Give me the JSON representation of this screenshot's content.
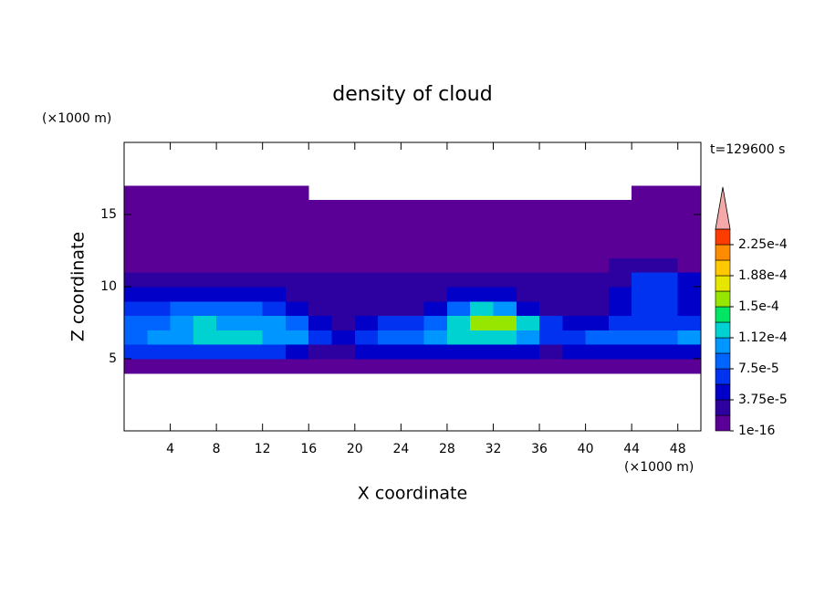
{
  "chart_data": {
    "type": "contour",
    "title": "density of cloud",
    "x_label": "X coordinate",
    "y_label": "Z coordinate",
    "x_unit": "(×1000 m)",
    "y_unit": "(×1000 m)",
    "annotation": "t=129600 s",
    "xlim": [
      0,
      50
    ],
    "ylim": [
      0,
      20
    ],
    "xticks": [
      4,
      8,
      12,
      16,
      20,
      24,
      28,
      32,
      36,
      40,
      44,
      48
    ],
    "yticks": [
      5,
      10,
      15
    ],
    "x": [
      1,
      3,
      5,
      7,
      9,
      11,
      13,
      15,
      17,
      19,
      21,
      23,
      25,
      27,
      29,
      31,
      33,
      35,
      37,
      39,
      41,
      43,
      45,
      47,
      49
    ],
    "y": [
      4.5,
      5.5,
      6.5,
      7.5,
      8.5,
      9.5,
      10.5,
      11.5,
      12.5,
      13.5,
      14.5,
      15.5,
      16.5
    ],
    "values": [
      [
        9e-06,
        9e-06,
        9e-06,
        9e-06,
        9e-06,
        9e-06,
        9e-06,
        9e-06,
        9e-06,
        9e-06,
        9e-06,
        9e-06,
        9e-06,
        9e-06,
        9e-06,
        9e-06,
        9e-06,
        9e-06,
        9e-06,
        9e-06,
        9e-06,
        9e-06,
        9e-06,
        9e-06,
        9e-06
      ],
      [
        6.5e-05,
        6.5e-05,
        6.5e-05,
        6.5e-05,
        6.5e-05,
        6.5e-05,
        6.5e-05,
        4.7e-05,
        2.8e-05,
        2.8e-05,
        4.7e-05,
        4.7e-05,
        4.7e-05,
        4.7e-05,
        4.7e-05,
        4.7e-05,
        4.7e-05,
        4.7e-05,
        2.8e-05,
        4.7e-05,
        4.7e-05,
        4.7e-05,
        4.7e-05,
        4.7e-05,
        4.7e-05
      ],
      [
        8.4e-05,
        0.000103,
        0.000103,
        0.000122,
        0.000122,
        0.000122,
        0.000103,
        0.000103,
        6.5e-05,
        4.7e-05,
        6.5e-05,
        8.4e-05,
        8.4e-05,
        0.000103,
        0.000122,
        0.000122,
        0.000122,
        0.000103,
        6.5e-05,
        6.5e-05,
        8.4e-05,
        8.4e-05,
        8.4e-05,
        8.4e-05,
        0.000103
      ],
      [
        8.4e-05,
        8.4e-05,
        0.000103,
        0.000122,
        0.000103,
        0.000103,
        0.000103,
        8.4e-05,
        4.7e-05,
        2.8e-05,
        4.7e-05,
        6.5e-05,
        6.5e-05,
        8.4e-05,
        0.000122,
        0.000159,
        0.000159,
        0.000122,
        6.5e-05,
        4.7e-05,
        4.7e-05,
        6.5e-05,
        6.5e-05,
        6.5e-05,
        6.5e-05
      ],
      [
        6.5e-05,
        6.5e-05,
        8.4e-05,
        8.4e-05,
        8.4e-05,
        8.4e-05,
        6.5e-05,
        4.7e-05,
        2.8e-05,
        2.8e-05,
        2.8e-05,
        2.8e-05,
        2.8e-05,
        4.7e-05,
        8.4e-05,
        0.000122,
        0.000103,
        4.7e-05,
        2.8e-05,
        2.8e-05,
        2.8e-05,
        4.7e-05,
        6.5e-05,
        6.5e-05,
        4.7e-05
      ],
      [
        4.7e-05,
        4.7e-05,
        4.7e-05,
        4.7e-05,
        4.7e-05,
        4.7e-05,
        4.7e-05,
        2.8e-05,
        2.8e-05,
        2.8e-05,
        2.8e-05,
        2.8e-05,
        2.8e-05,
        2.8e-05,
        4.7e-05,
        4.7e-05,
        4.7e-05,
        2.8e-05,
        2.8e-05,
        2.8e-05,
        2.8e-05,
        4.7e-05,
        6.5e-05,
        6.5e-05,
        4.7e-05
      ],
      [
        2.8e-05,
        2.8e-05,
        2.8e-05,
        2.8e-05,
        2.8e-05,
        2.8e-05,
        2.8e-05,
        2.8e-05,
        2.8e-05,
        2.8e-05,
        2.8e-05,
        2.8e-05,
        2.8e-05,
        2.8e-05,
        2.8e-05,
        2.8e-05,
        2.8e-05,
        2.8e-05,
        2.8e-05,
        2.8e-05,
        2.8e-05,
        2.8e-05,
        6.5e-05,
        6.5e-05,
        4.7e-05
      ],
      [
        9e-06,
        9e-06,
        9e-06,
        9e-06,
        9e-06,
        9e-06,
        9e-06,
        9e-06,
        9e-06,
        9e-06,
        9e-06,
        9e-06,
        9e-06,
        9e-06,
        9e-06,
        9e-06,
        9e-06,
        9e-06,
        9e-06,
        9e-06,
        9e-06,
        2.8e-05,
        2.8e-05,
        2.8e-05,
        9e-06
      ],
      [
        9e-06,
        9e-06,
        9e-06,
        9e-06,
        9e-06,
        9e-06,
        9e-06,
        9e-06,
        9e-06,
        9e-06,
        9e-06,
        9e-06,
        9e-06,
        9e-06,
        9e-06,
        9e-06,
        9e-06,
        9e-06,
        9e-06,
        9e-06,
        9e-06,
        9e-06,
        9e-06,
        9e-06,
        9e-06
      ],
      [
        9e-06,
        9e-06,
        9e-06,
        9e-06,
        9e-06,
        9e-06,
        9e-06,
        9e-06,
        9e-06,
        9e-06,
        9e-06,
        9e-06,
        9e-06,
        9e-06,
        9e-06,
        9e-06,
        9e-06,
        9e-06,
        9e-06,
        9e-06,
        9e-06,
        9e-06,
        9e-06,
        9e-06,
        9e-06
      ],
      [
        9e-06,
        9e-06,
        9e-06,
        9e-06,
        9e-06,
        9e-06,
        9e-06,
        9e-06,
        9e-06,
        9e-06,
        9e-06,
        9e-06,
        9e-06,
        9e-06,
        9e-06,
        9e-06,
        9e-06,
        9e-06,
        9e-06,
        9e-06,
        9e-06,
        9e-06,
        9e-06,
        9e-06,
        9e-06
      ],
      [
        9e-06,
        9e-06,
        9e-06,
        9e-06,
        9e-06,
        9e-06,
        9e-06,
        9e-06,
        9e-06,
        9e-06,
        9e-06,
        9e-06,
        9e-06,
        9e-06,
        9e-06,
        9e-06,
        9e-06,
        9e-06,
        9e-06,
        9e-06,
        9e-06,
        9e-06,
        9e-06,
        9e-06,
        9e-06
      ],
      [
        9e-06,
        9e-06,
        9e-06,
        9e-06,
        9e-06,
        9e-06,
        9e-06,
        9e-06,
        null,
        null,
        null,
        null,
        null,
        null,
        null,
        null,
        null,
        null,
        null,
        null,
        null,
        null,
        9e-06,
        9e-06,
        9e-06
      ]
    ],
    "colorbar": {
      "clim": [
        1e-16,
        0.00024375
      ],
      "levels": [
        1e-16,
        1.875e-05,
        3.75e-05,
        5.625e-05,
        7.5e-05,
        9.375e-05,
        0.0001125,
        0.00013125,
        0.00015,
        0.00016875,
        0.0001875,
        0.00020625,
        0.000225
      ],
      "colors": [
        "#5a0096",
        "#2d00a0",
        "#0000c8",
        "#0032f0",
        "#0064ff",
        "#0096ff",
        "#00d2d2",
        "#00e664",
        "#96e600",
        "#e6e600",
        "#ffc800",
        "#ff8c00",
        "#ff3c00"
      ],
      "extend_color": "#f5a8a8",
      "ticks": [
        1e-16,
        {
          "value": 3.75e-05,
          "label": "3.75e-5"
        },
        {
          "value": 7.5e-05,
          "label": "7.5e-5"
        },
        {
          "value": 0.0001125,
          "label": "1.12e-4"
        },
        {
          "value": 0.00015,
          "label": "1.5e-4"
        },
        {
          "value": 0.0001875,
          "label": "1.88e-4"
        },
        {
          "value": 0.000225,
          "label": "2.25e-4"
        }
      ]
    }
  }
}
